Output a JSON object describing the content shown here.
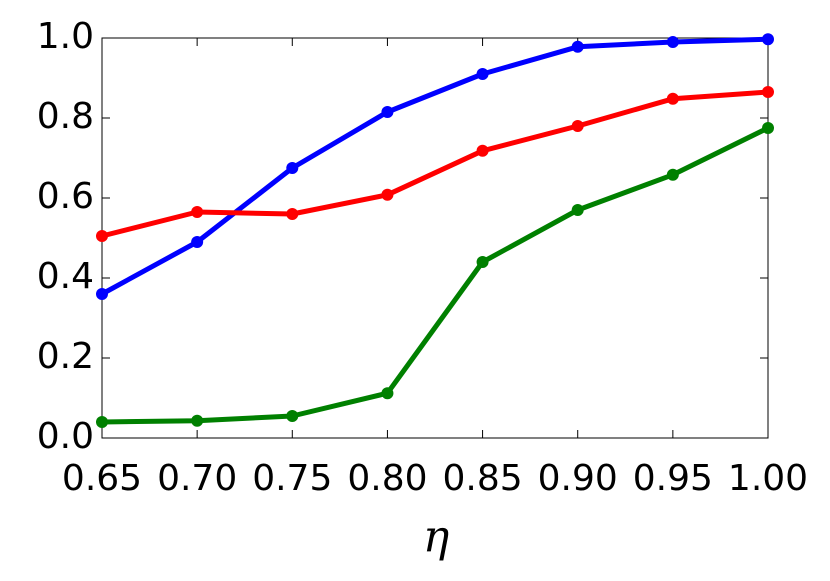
{
  "chart_data": {
    "type": "line",
    "x_label": "η",
    "x": [
      0.65,
      0.7,
      0.75,
      0.8,
      0.85,
      0.9,
      0.95,
      1.0
    ],
    "series": [
      {
        "color": "#0000ff",
        "values": [
          0.36,
          0.49,
          0.675,
          0.815,
          0.91,
          0.978,
          0.99,
          0.997
        ]
      },
      {
        "color": "#ff0000",
        "values": [
          0.505,
          0.565,
          0.56,
          0.608,
          0.718,
          0.78,
          0.848,
          0.865
        ]
      },
      {
        "color": "#008000",
        "values": [
          0.04,
          0.043,
          0.055,
          0.112,
          0.44,
          0.57,
          0.658,
          0.775
        ]
      }
    ],
    "xlim": [
      0.65,
      1.0
    ],
    "xticks": [
      0.65,
      {
        "value": 0.7,
        "label": "0.70"
      },
      0.75,
      {
        "value": 0.8,
        "label": "0.80"
      },
      0.85,
      {
        "value": 0.9,
        "label": "0.90"
      },
      0.95,
      {
        "value": 1.0,
        "label": "1.00"
      }
    ],
    "ylim": [
      0,
      1
    ],
    "yticks": [
      {
        "value": 0,
        "label": "0.0"
      },
      0.2,
      0.4,
      0.6,
      0.8,
      {
        "value": 1,
        "label": "1.0"
      }
    ],
    "grid": false
  }
}
